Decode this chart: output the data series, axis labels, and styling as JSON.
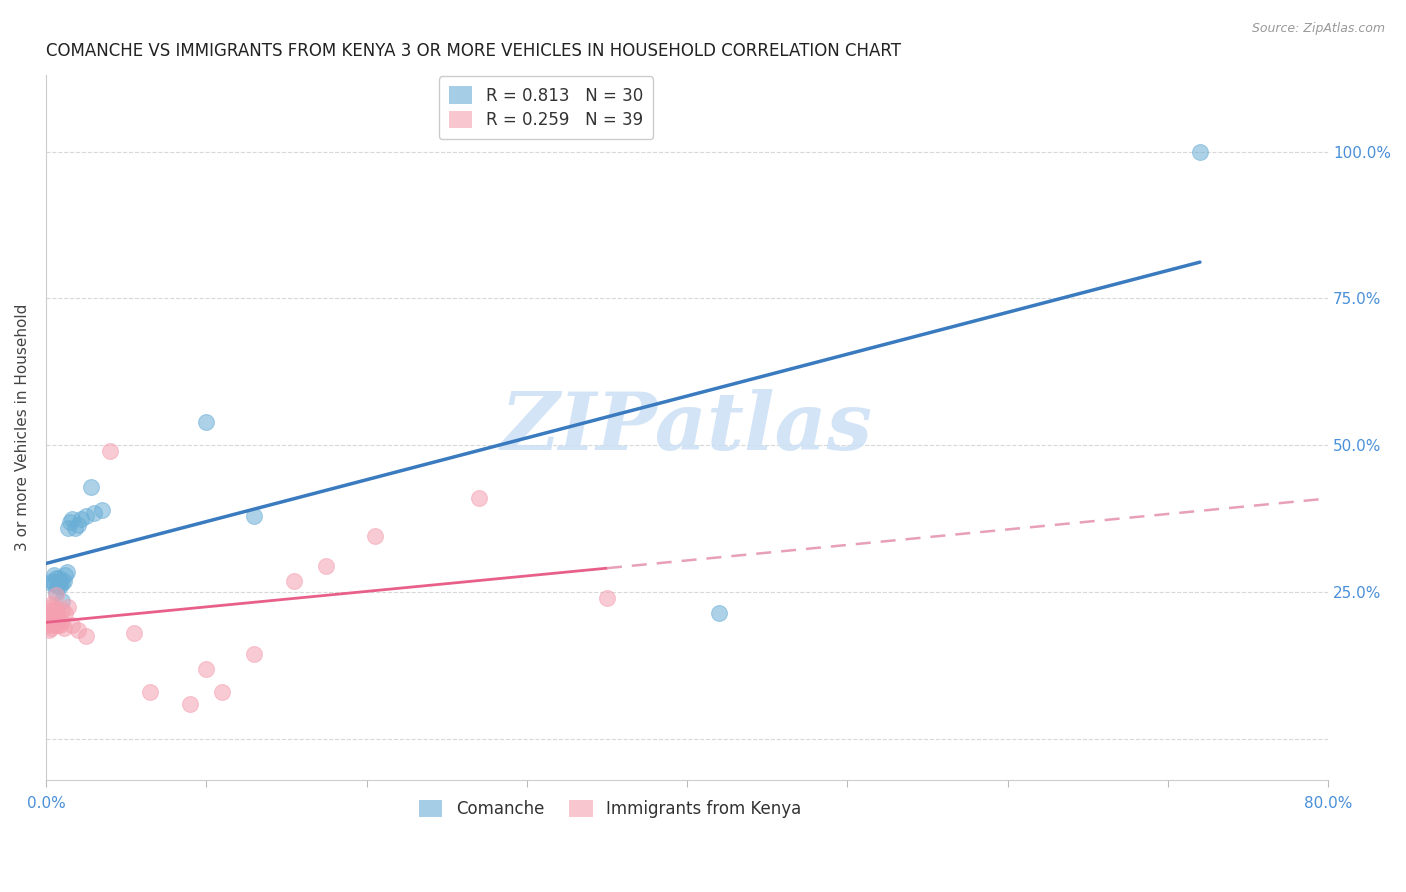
{
  "title": "COMANCHE VS IMMIGRANTS FROM KENYA 3 OR MORE VEHICLES IN HOUSEHOLD CORRELATION CHART",
  "source": "Source: ZipAtlas.com",
  "ylabel": "3 or more Vehicles in Household",
  "xlim": [
    0.0,
    0.8
  ],
  "ylim": [
    -0.07,
    1.13
  ],
  "xticks": [
    0.0,
    0.1,
    0.2,
    0.3,
    0.4,
    0.5,
    0.6,
    0.7,
    0.8
  ],
  "xticklabels": [
    "0.0%",
    "",
    "",
    "",
    "",
    "",
    "",
    "",
    "80.0%"
  ],
  "ytick_positions": [
    0.0,
    0.25,
    0.5,
    0.75,
    1.0
  ],
  "ytick_labels": [
    "",
    "25.0%",
    "50.0%",
    "75.0%",
    "100.0%"
  ],
  "right_ytick_color": "#4a90d9",
  "tick_color_x": "#4a90d9",
  "legend_R1": "0.813",
  "legend_N1": "30",
  "legend_R2": "0.259",
  "legend_N2": "39",
  "blue_color": "#6aaed6",
  "pink_color": "#f4a0b0",
  "regression_blue_color": "#3a7bbf",
  "regression_pink_solid_color": "#e8608a",
  "regression_pink_dash_color": "#e8a0b8",
  "watermark_text": "ZIPatlas",
  "watermark_color": "#cce0f5",
  "blue_scatter_x": [
    0.003,
    0.004,
    0.005,
    0.005,
    0.006,
    0.006,
    0.007,
    0.008,
    0.008,
    0.009,
    0.009,
    0.01,
    0.01,
    0.011,
    0.012,
    0.013,
    0.014,
    0.015,
    0.016,
    0.018,
    0.02,
    0.022,
    0.025,
    0.028,
    0.03,
    0.035,
    0.1,
    0.13,
    0.42,
    0.72
  ],
  "blue_scatter_y": [
    0.265,
    0.27,
    0.265,
    0.28,
    0.25,
    0.275,
    0.26,
    0.265,
    0.275,
    0.27,
    0.26,
    0.235,
    0.265,
    0.27,
    0.28,
    0.285,
    0.36,
    0.37,
    0.375,
    0.36,
    0.365,
    0.375,
    0.38,
    0.43,
    0.385,
    0.39,
    0.54,
    0.38,
    0.215,
    1.0
  ],
  "pink_scatter_x": [
    0.001,
    0.001,
    0.002,
    0.002,
    0.002,
    0.003,
    0.003,
    0.003,
    0.004,
    0.004,
    0.005,
    0.005,
    0.006,
    0.006,
    0.006,
    0.007,
    0.007,
    0.008,
    0.009,
    0.01,
    0.01,
    0.011,
    0.012,
    0.014,
    0.016,
    0.02,
    0.025,
    0.04,
    0.055,
    0.065,
    0.09,
    0.1,
    0.11,
    0.13,
    0.155,
    0.175,
    0.205,
    0.27,
    0.35
  ],
  "pink_scatter_y": [
    0.21,
    0.195,
    0.22,
    0.2,
    0.185,
    0.2,
    0.225,
    0.19,
    0.195,
    0.23,
    0.205,
    0.22,
    0.195,
    0.22,
    0.245,
    0.195,
    0.215,
    0.205,
    0.195,
    0.2,
    0.22,
    0.19,
    0.215,
    0.225,
    0.195,
    0.185,
    0.175,
    0.49,
    0.18,
    0.08,
    0.06,
    0.12,
    0.08,
    0.145,
    0.27,
    0.295,
    0.345,
    0.41,
    0.24
  ],
  "grid_color": "#d8d8d8",
  "background_color": "#ffffff",
  "title_fontsize": 12,
  "axis_label_fontsize": 11,
  "tick_fontsize": 11
}
